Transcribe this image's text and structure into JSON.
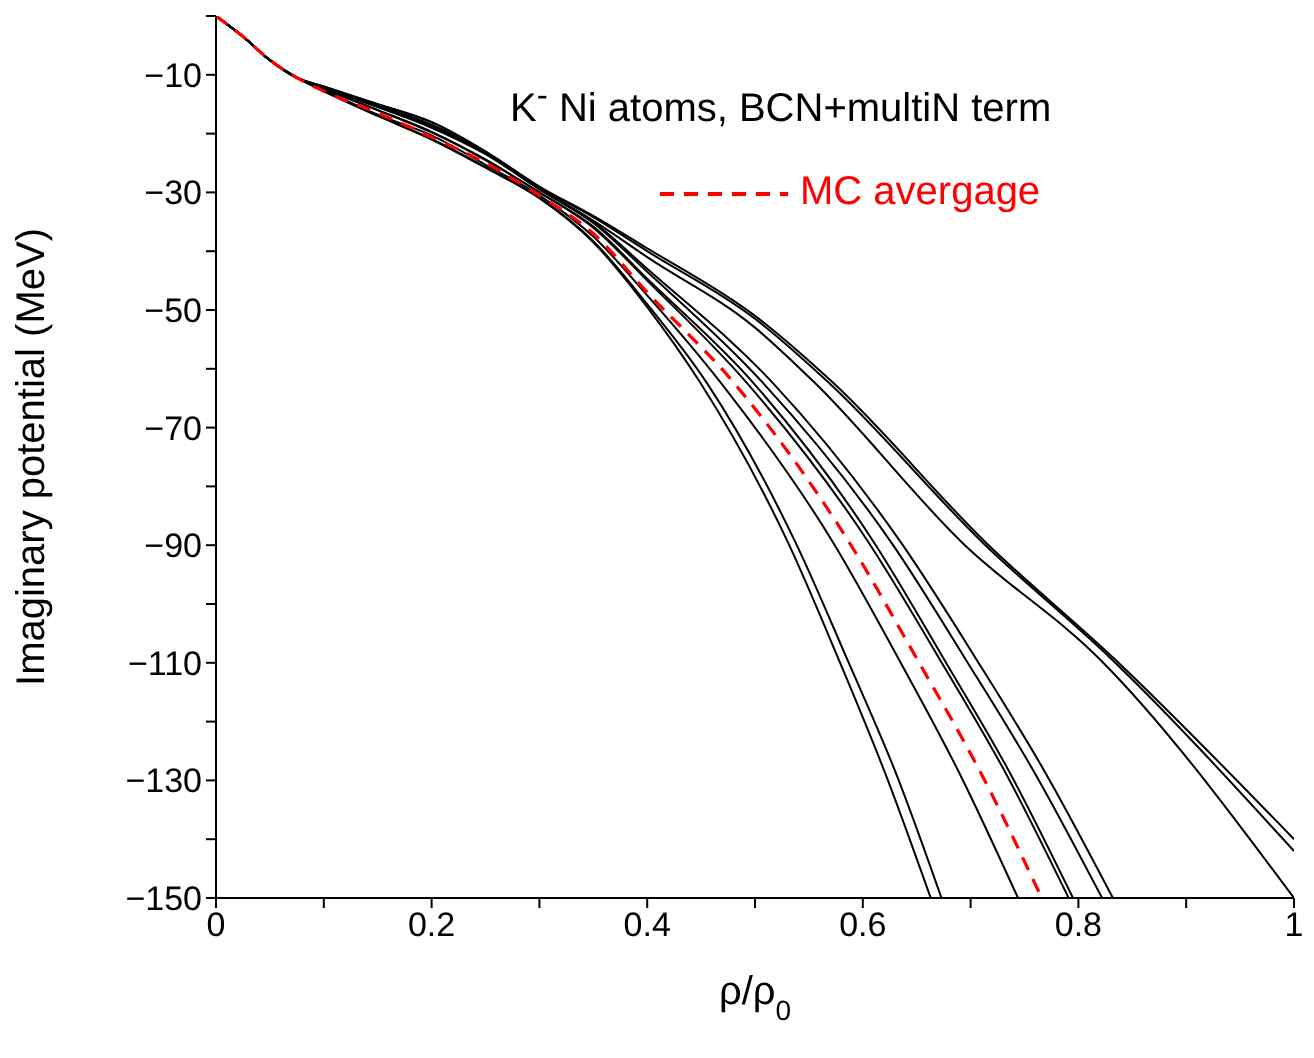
{
  "chart_data": {
    "type": "line",
    "xlabel": "ρ/ρ$_{0}$",
    "ylabel": "Imaginary potential (MeV)",
    "annotations": [
      "K$^{-}$ Ni atoms, BCN+multiN term"
    ],
    "xlim": [
      0,
      1
    ],
    "ylim": [
      -150,
      0
    ],
    "xticks": [
      0,
      {
        "value": 0.1,
        "label": null
      },
      0.2,
      {
        "value": 0.3,
        "label": null
      },
      0.4,
      {
        "value": 0.5,
        "label": null
      },
      0.6,
      {
        "value": 0.7,
        "label": null
      },
      0.8,
      {
        "value": 0.9,
        "label": null
      },
      1
    ],
    "yticks": [
      {
        "value": 0,
        "label": null
      },
      -10,
      {
        "value": -20,
        "label": null
      },
      -30,
      {
        "value": -40,
        "label": null
      },
      -50,
      {
        "value": -60,
        "label": null
      },
      -70,
      {
        "value": -80,
        "label": null
      },
      -90,
      {
        "value": -100,
        "label": null
      },
      -110,
      {
        "value": -120,
        "label": null
      },
      -130,
      {
        "value": -140,
        "label": null
      },
      -150
    ],
    "legend": "top right",
    "marker": "none",
    "line_style": "solid",
    "series": [
      {
        "color": "#000000",
        "x": [
          0,
          0.025,
          0.05,
          0.075,
          0.1,
          0.15,
          0.2,
          0.25,
          0.3,
          0.35,
          0.4,
          0.449,
          0.531,
          0.578,
          0.621,
          0.663
        ],
        "values": [
          0,
          -3.5,
          -7.5,
          -10.5,
          -12.8,
          -17,
          -21,
          -25.8,
          -31,
          -38.5,
          -49.5,
          -62.3,
          -89.7,
          -109.6,
          -128.9,
          -150
        ]
      },
      {
        "color": "#000000",
        "x": [
          0,
          0.025,
          0.05,
          0.075,
          0.1,
          0.15,
          0.2,
          0.25,
          0.3,
          0.35,
          0.4,
          0.455,
          0.538,
          0.586,
          0.631,
          0.673
        ],
        "values": [
          0,
          -3.5,
          -7.5,
          -10.5,
          -12.7,
          -16.9,
          -20.9,
          -25.7,
          -30.9,
          -38.3,
          -49,
          -62.3,
          -89.7,
          -109.6,
          -128.9,
          -150
        ]
      },
      {
        "color": "#000000",
        "x": [
          0,
          0.025,
          0.05,
          0.075,
          0.1,
          0.15,
          0.2,
          0.25,
          0.3,
          0.35,
          0.4,
          0.468,
          0.573,
          0.634,
          0.69,
          0.744
        ],
        "values": [
          0,
          -3.5,
          -7.5,
          -10.5,
          -12.6,
          -16.8,
          -20.3,
          -25.3,
          -30.5,
          -37.5,
          -47.5,
          -62.3,
          -89.7,
          -109.6,
          -128.9,
          -150
        ]
      },
      {
        "color": "#000000",
        "x": [
          0,
          0.025,
          0.05,
          0.075,
          0.1,
          0.15,
          0.2,
          0.25,
          0.3,
          0.35,
          0.4,
          0.492,
          0.606,
          0.672,
          0.733,
          0.791
        ],
        "values": [
          0,
          -3.5,
          -7.5,
          -10.5,
          -12.4,
          -16,
          -19.8,
          -24.5,
          -30,
          -36,
          -45,
          -62.3,
          -89.7,
          -109.6,
          -128.9,
          -150
        ]
      },
      {
        "color": "#000000",
        "x": [
          0,
          0.025,
          0.05,
          0.075,
          0.1,
          0.15,
          0.2,
          0.25,
          0.3,
          0.35,
          0.4,
          0.498,
          0.611,
          0.676,
          0.737,
          0.795
        ],
        "values": [
          0,
          -3.5,
          -7.5,
          -10.5,
          -12.4,
          -16,
          -19.7,
          -24.4,
          -30,
          -35.8,
          -44.7,
          -62.3,
          -89.7,
          -109.6,
          -128.9,
          -150
        ]
      },
      {
        "color": "#000000",
        "x": [
          0,
          0.025,
          0.05,
          0.075,
          0.1,
          0.15,
          0.2,
          0.25,
          0.3,
          0.35,
          0.4,
          0.507,
          0.627,
          0.696,
          0.76,
          0.822
        ],
        "values": [
          0,
          -3.5,
          -7.5,
          -10.5,
          -12.2,
          -15.5,
          -19,
          -23.5,
          -29.5,
          -35.2,
          -43.5,
          -62.3,
          -89.7,
          -109.6,
          -128.9,
          -150
        ]
      },
      {
        "color": "#000000",
        "x": [
          0,
          0.025,
          0.05,
          0.075,
          0.1,
          0.15,
          0.2,
          0.25,
          0.3,
          0.35,
          0.4,
          0.516,
          0.636,
          0.706,
          0.77,
          0.832
        ],
        "values": [
          0,
          -3.5,
          -7.5,
          -10.5,
          -12.2,
          -15.4,
          -18.8,
          -23.3,
          -29.4,
          -35,
          -43,
          -62.3,
          -89.7,
          -109.6,
          -128.9,
          -150
        ]
      },
      {
        "color": "#000000",
        "x": [
          0,
          0.025,
          0.05,
          0.075,
          0.1,
          0.15,
          0.2,
          0.25,
          0.3,
          0.35,
          0.4,
          0.5,
          0.572,
          0.715,
          0.835,
          1
        ],
        "values": [
          0,
          -3.5,
          -7.5,
          -10.5,
          -12,
          -15,
          -18,
          -23,
          -29,
          -34,
          -39.5,
          -51,
          -62.3,
          -89.7,
          -109.6,
          -140
        ]
      },
      {
        "color": "#000000",
        "x": [
          0,
          0.025,
          0.05,
          0.075,
          0.1,
          0.15,
          0.2,
          0.25,
          0.3,
          0.35,
          0.4,
          0.5,
          0.568,
          0.712,
          0.832,
          1
        ],
        "values": [
          0,
          -3.5,
          -7.5,
          -10.5,
          -12,
          -15,
          -18.1,
          -23.1,
          -29.1,
          -34.2,
          -40,
          -51.5,
          -62.3,
          -89.7,
          -109.6,
          -142
        ]
      },
      {
        "color": "#000000",
        "x": [
          0,
          0.025,
          0.05,
          0.075,
          0.1,
          0.15,
          0.2,
          0.25,
          0.3,
          0.35,
          0.4,
          0.5,
          0.555,
          0.693,
          0.821,
          1
        ],
        "values": [
          0,
          -3.5,
          -7.5,
          -10.5,
          -12.1,
          -15.2,
          -18.5,
          -23.3,
          -29.3,
          -34.8,
          -41,
          -53,
          -62.3,
          -89.7,
          -109.6,
          -150
        ]
      },
      {
        "name": "MC avergage",
        "color": "#ff0000",
        "line_style": "dashed",
        "x": [
          0,
          0.025,
          0.05,
          0.075,
          0.1,
          0.15,
          0.2,
          0.25,
          0.3,
          0.35,
          0.4,
          0.48,
          0.588,
          0.651,
          0.71,
          0.766
        ],
        "values": [
          0,
          -3.5,
          -7.5,
          -10.5,
          -12.8,
          -16.5,
          -20.6,
          -25,
          -30.5,
          -37,
          -47,
          -62.3,
          -89.7,
          -109.6,
          -128.9,
          -150
        ]
      }
    ]
  }
}
